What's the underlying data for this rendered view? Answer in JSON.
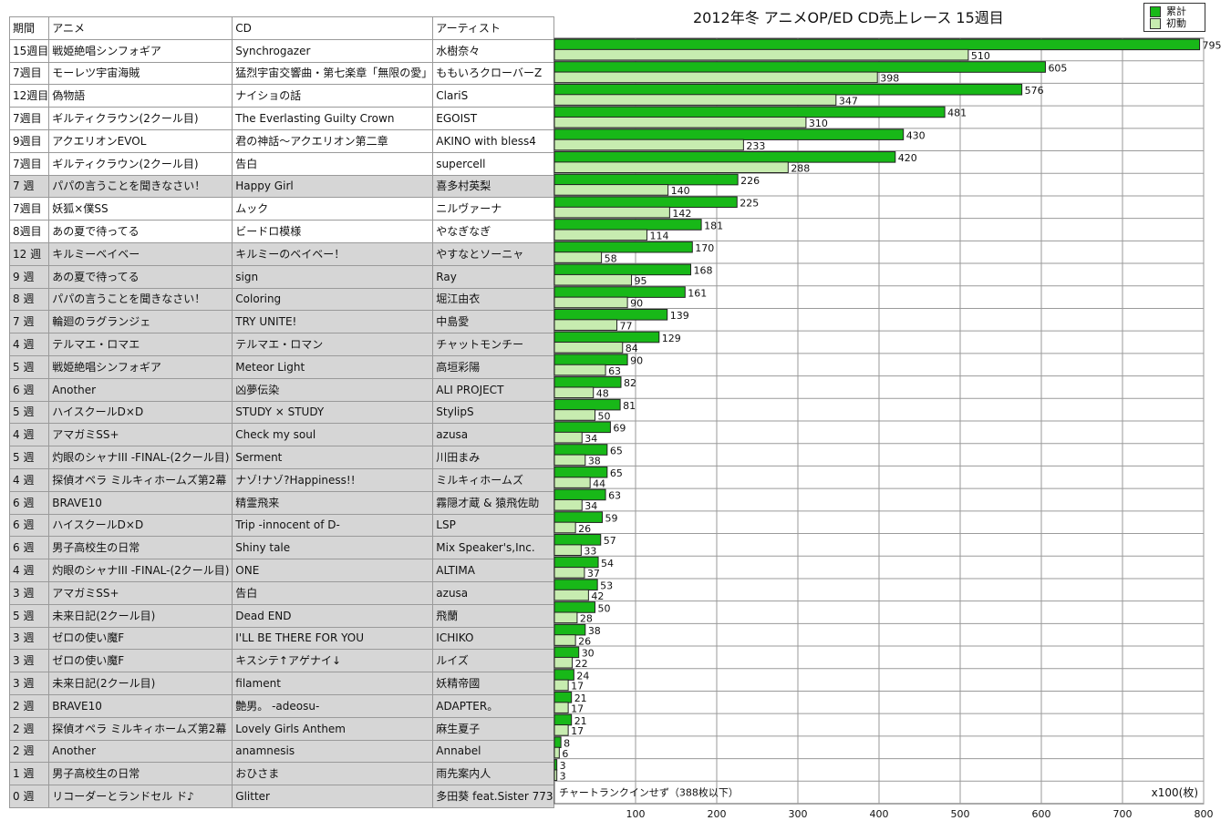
{
  "title": "2012年冬 アニメOP/ED CD売上レース 15週目",
  "legend": {
    "total": "累計",
    "first": "初動"
  },
  "colors": {
    "total": "#18b818",
    "first": "#c7ecb0",
    "gray_row": "#d6d6d6",
    "grid": "#9a9a9a"
  },
  "headers": {
    "period": "期間",
    "anime": "アニメ",
    "cd": "CD",
    "artist": "アーティスト"
  },
  "rows": [
    {
      "period": "15週目",
      "anime": "戦姫絶唱シンフォギア",
      "cd": "Synchrogazer",
      "artist": "水樹奈々",
      "gray": false
    },
    {
      "period": "7週目",
      "anime": "モーレツ宇宙海賊",
      "cd": "猛烈宇宙交響曲・第七楽章「無限の愛」",
      "artist": "ももいろクローバーZ",
      "gray": false
    },
    {
      "period": "12週目",
      "anime": "偽物語",
      "cd": "ナイショの話",
      "artist": "ClariS",
      "gray": false
    },
    {
      "period": "7週目",
      "anime": "ギルティクラウン(2クール目)",
      "cd": "The Everlasting Guilty Crown",
      "artist": "EGOIST",
      "gray": false
    },
    {
      "period": "9週目",
      "anime": "アクエリオンEVOL",
      "cd": "君の神話～アクエリオン第二章",
      "artist": "AKINO with bless4",
      "gray": false
    },
    {
      "period": "7週目",
      "anime": "ギルティクラウン(2クール目)",
      "cd": "告白",
      "artist": "supercell",
      "gray": false
    },
    {
      "period": "7 週",
      "anime": "パパの言うことを聞きなさい！",
      "cd": "Happy Girl",
      "artist": "喜多村英梨",
      "gray": true
    },
    {
      "period": "7週目",
      "anime": "妖狐×僕SS",
      "cd": "ムック",
      "artist": "ニルヴァーナ",
      "gray": false
    },
    {
      "period": "8週目",
      "anime": "あの夏で待ってる",
      "cd": "ビードロ模様",
      "artist": "やなぎなぎ",
      "gray": false
    },
    {
      "period": "12 週",
      "anime": "キルミーベイベー",
      "cd": "キルミーのベイベー！",
      "artist": "やすなとソーニャ",
      "gray": true
    },
    {
      "period": "9 週",
      "anime": "あの夏で待ってる",
      "cd": "sign",
      "artist": "Ray",
      "gray": true
    },
    {
      "period": "8 週",
      "anime": "パパの言うことを聞きなさい！",
      "cd": "Coloring",
      "artist": "堀江由衣",
      "gray": true
    },
    {
      "period": "7 週",
      "anime": "輪廻のラグランジェ",
      "cd": "TRY UNITE!",
      "artist": "中島愛",
      "gray": true
    },
    {
      "period": "4 週",
      "anime": "テルマエ・ロマエ",
      "cd": "テルマエ・ロマン",
      "artist": "チャットモンチー",
      "gray": true
    },
    {
      "period": "5 週",
      "anime": "戦姫絶唱シンフォギア",
      "cd": "Meteor Light",
      "artist": "高垣彩陽",
      "gray": true
    },
    {
      "period": "6 週",
      "anime": "Another",
      "cd": "凶夢伝染",
      "artist": "ALI PROJECT",
      "gray": true
    },
    {
      "period": "5 週",
      "anime": "ハイスクールD×D",
      "cd": "STUDY × STUDY",
      "artist": "StylipS",
      "gray": true
    },
    {
      "period": "4 週",
      "anime": "アマガミSS+",
      "cd": "Check my soul",
      "artist": "azusa",
      "gray": true
    },
    {
      "period": "5 週",
      "anime": "灼眼のシャナIII -FINAL-(2クール目)",
      "cd": "Serment",
      "artist": "川田まみ",
      "gray": true
    },
    {
      "period": "4 週",
      "anime": "探偵オペラ ミルキィホームズ第2幕",
      "cd": "ナゾ!ナゾ?Happiness!!",
      "artist": "ミルキィホームズ",
      "gray": true
    },
    {
      "period": "6 週",
      "anime": "BRAVE10",
      "cd": "精霊飛来",
      "artist": "霧隠才蔵 & 猿飛佐助",
      "gray": true
    },
    {
      "period": "6 週",
      "anime": "ハイスクールD×D",
      "cd": "Trip -innocent of D-",
      "artist": "LSP",
      "gray": true
    },
    {
      "period": "6 週",
      "anime": "男子高校生の日常",
      "cd": "Shiny tale",
      "artist": "Mix Speaker's,Inc.",
      "gray": true
    },
    {
      "period": "4 週",
      "anime": "灼眼のシャナIII -FINAL-(2クール目)",
      "cd": "ONE",
      "artist": "ALTIMA",
      "gray": true
    },
    {
      "period": "3 週",
      "anime": "アマガミSS+",
      "cd": "告白",
      "artist": "azusa",
      "gray": true
    },
    {
      "period": "5 週",
      "anime": "未来日記(2クール目)",
      "cd": "Dead END",
      "artist": "飛蘭",
      "gray": true
    },
    {
      "period": "3 週",
      "anime": "ゼロの使い魔F",
      "cd": "I'LL BE THERE FOR YOU",
      "artist": "ICHIKO",
      "gray": true
    },
    {
      "period": "3 週",
      "anime": "ゼロの使い魔F",
      "cd": "キスシテ↑アゲナイ↓",
      "artist": "ルイズ",
      "gray": true
    },
    {
      "period": "3 週",
      "anime": "未来日記(2クール目)",
      "cd": "filament",
      "artist": "妖精帝國",
      "gray": true
    },
    {
      "period": "2 週",
      "anime": "BRAVE10",
      "cd": "艶男。 -adeosu-",
      "artist": "ADAPTER。",
      "gray": true
    },
    {
      "period": "2 週",
      "anime": "探偵オペラ ミルキィホームズ第2幕",
      "cd": "Lovely Girls Anthem",
      "artist": "麻生夏子",
      "gray": true
    },
    {
      "period": "2 週",
      "anime": "Another",
      "cd": "anamnesis",
      "artist": "Annabel",
      "gray": true
    },
    {
      "period": "1 週",
      "anime": "男子高校生の日常",
      "cd": "おひさま",
      "artist": "雨先案内人",
      "gray": true
    },
    {
      "period": "0 週",
      "anime": "リコーダーとランドセル ド♪",
      "cd": "Glitter",
      "artist": "多田葵 feat.Sister 773",
      "gray": true
    }
  ],
  "chart_data": {
    "type": "bar",
    "orientation": "horizontal",
    "title": "2012年冬 アニメOP/ED CD売上レース 15週目",
    "xlabel": "x100(枚)",
    "xlim": [
      0,
      800
    ],
    "xticks": [
      100,
      200,
      300,
      400,
      500,
      600,
      700,
      800
    ],
    "grid": true,
    "legend_position": "top-right",
    "categories": [
      "Synchrogazer",
      "猛烈宇宙交響曲・第七楽章「無限の愛」",
      "ナイショの話",
      "The Everlasting Guilty Crown",
      "君の神話～アクエリオン第二章",
      "告白",
      "Happy Girl",
      "ムック",
      "ビードロ模様",
      "キルミーのベイベー！",
      "sign",
      "Coloring",
      "TRY UNITE!",
      "テルマエ・ロマン",
      "Meteor Light",
      "凶夢伝染",
      "STUDY × STUDY",
      "Check my soul",
      "Serment",
      "ナゾ!ナゾ?Happiness!!",
      "精霊飛来",
      "Trip -innocent of D-",
      "Shiny tale",
      "ONE",
      "告白",
      "Dead END",
      "I'LL BE THERE FOR YOU",
      "キスシテ↑アゲナイ↓",
      "filament",
      "艶男。 -adeosu-",
      "Lovely Girls Anthem",
      "anamnesis",
      "おひさま",
      "Glitter"
    ],
    "series": [
      {
        "name": "累計",
        "values": [
          795,
          605,
          576,
          481,
          430,
          420,
          226,
          225,
          181,
          170,
          168,
          161,
          139,
          129,
          90,
          82,
          81,
          69,
          65,
          65,
          63,
          59,
          57,
          54,
          53,
          50,
          38,
          30,
          24,
          21,
          21,
          8,
          3,
          null
        ]
      },
      {
        "name": "初動",
        "values": [
          510,
          398,
          347,
          310,
          233,
          288,
          140,
          142,
          114,
          58,
          95,
          90,
          77,
          84,
          63,
          48,
          50,
          34,
          38,
          44,
          34,
          26,
          33,
          37,
          42,
          28,
          26,
          22,
          17,
          17,
          17,
          6,
          3,
          null
        ]
      }
    ],
    "annotations": [
      "チャートランクインせず（388枚以下）"
    ]
  }
}
